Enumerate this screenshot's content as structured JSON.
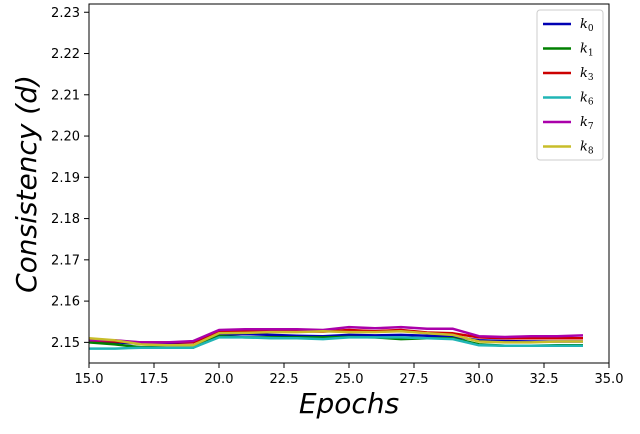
{
  "chart_data": {
    "type": "line",
    "xlabel": "Epochs",
    "ylabel": "Consistency (d)",
    "xlim": [
      15.0,
      35.0
    ],
    "ylim": [
      2.145,
      2.232
    ],
    "xticks": [
      "15.0",
      "17.5",
      "20.0",
      "22.5",
      "25.0",
      "27.5",
      "30.0",
      "32.5",
      "35.0"
    ],
    "yticks": [
      "2.15",
      "2.16",
      "2.17",
      "2.18",
      "2.19",
      "2.20",
      "2.21",
      "2.22",
      "2.23"
    ],
    "legend_position": "top-right",
    "x": [
      15,
      16,
      17,
      18,
      19,
      20,
      21,
      22,
      23,
      24,
      25,
      26,
      27,
      28,
      29,
      30,
      31,
      32,
      33,
      34
    ],
    "series": [
      {
        "name": "k0",
        "label_main": "k",
        "label_sub": "0",
        "color": "#0000b3",
        "values": [
          2.1502,
          2.15,
          2.1497,
          2.1495,
          2.1493,
          2.1518,
          2.152,
          2.1518,
          2.1516,
          2.1515,
          2.1518,
          2.1517,
          2.1518,
          2.1516,
          2.1514,
          2.1505,
          2.1503,
          2.1502,
          2.1502,
          2.1502
        ]
      },
      {
        "name": "k1",
        "label_main": "k",
        "label_sub": "1",
        "color": "#008000",
        "values": [
          2.15,
          2.1495,
          2.1488,
          2.149,
          2.1487,
          2.1515,
          2.1512,
          2.1512,
          2.1512,
          2.1512,
          2.1513,
          2.1512,
          2.1508,
          2.151,
          2.151,
          2.1495,
          2.1492,
          2.1492,
          2.1493,
          2.1493
        ]
      },
      {
        "name": "k3",
        "label_main": "k",
        "label_sub": "3",
        "color": "#cc0000",
        "values": [
          2.1505,
          2.1502,
          2.15,
          2.15,
          2.15,
          2.1525,
          2.1527,
          2.1527,
          2.1527,
          2.1526,
          2.153,
          2.1527,
          2.153,
          2.1524,
          2.1522,
          2.1512,
          2.151,
          2.151,
          2.151,
          2.151
        ]
      },
      {
        "name": "k6",
        "label_main": "k",
        "label_sub": "6",
        "color": "#20b5b5",
        "values": [
          2.1485,
          2.1485,
          2.1487,
          2.1487,
          2.1487,
          2.1512,
          2.1512,
          2.151,
          2.151,
          2.1508,
          2.1512,
          2.1512,
          2.1512,
          2.151,
          2.1508,
          2.1493,
          2.1492,
          2.1492,
          2.1492,
          2.1492
        ]
      },
      {
        "name": "k7",
        "label_main": "k",
        "label_sub": "7",
        "color": "#aa00aa",
        "values": [
          2.1505,
          2.1505,
          2.15,
          2.15,
          2.1503,
          2.153,
          2.1532,
          2.1532,
          2.1532,
          2.153,
          2.1537,
          2.1534,
          2.1537,
          2.1533,
          2.1533,
          2.1515,
          2.1513,
          2.1515,
          2.1515,
          2.1517
        ]
      },
      {
        "name": "k8",
        "label_main": "k",
        "label_sub": "8",
        "color": "#c8bd2a",
        "values": [
          2.151,
          2.1505,
          2.1495,
          2.1493,
          2.1493,
          2.1522,
          2.1523,
          2.1525,
          2.1525,
          2.1527,
          2.1525,
          2.1525,
          2.1527,
          2.1522,
          2.1518,
          2.1502,
          2.15,
          2.15,
          2.1502,
          2.1502
        ]
      }
    ]
  }
}
